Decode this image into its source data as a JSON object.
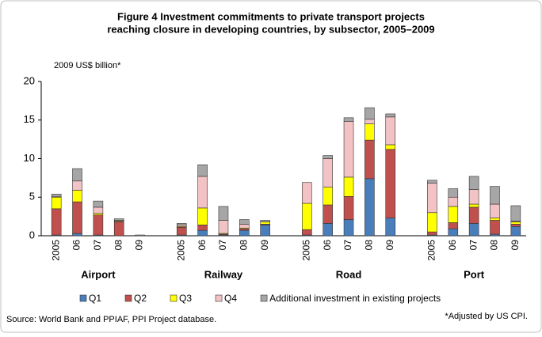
{
  "chart_data": {
    "type": "stacked_bar",
    "title": [
      "Figure 4 Investment commitments to private transport projects",
      "reaching closure in developing countries, by subsector, 2005–2009"
    ],
    "y_label": "2009 US$ billion*",
    "groups": [
      {
        "name": "Airport",
        "categories": [
          "2005",
          "06",
          "07",
          "08",
          "09"
        ]
      },
      {
        "name": "Railway",
        "categories": [
          "2005",
          "06",
          "07",
          "08",
          "09"
        ]
      },
      {
        "name": "Road",
        "categories": [
          "2005",
          "06",
          "07",
          "08",
          "09"
        ]
      },
      {
        "name": "Port",
        "categories": [
          "2005",
          "06",
          "07",
          "08",
          "09"
        ]
      }
    ],
    "series": [
      {
        "name": "Q1",
        "color": "#4a7ebb",
        "values": [
          0.1,
          0.3,
          0.1,
          0,
          0,
          0.1,
          0.7,
          0.1,
          0.7,
          1.4,
          0.1,
          1.6,
          2.1,
          7.4,
          2.3,
          0.1,
          0.9,
          1.6,
          0.2,
          1.2
        ]
      },
      {
        "name": "Q2",
        "color": "#c0504d",
        "values": [
          3.4,
          4.1,
          2.6,
          1.8,
          0,
          1.0,
          0.7,
          0.1,
          0.2,
          0.1,
          0.7,
          2.4,
          3.0,
          5.0,
          8.9,
          0.4,
          0.8,
          2.1,
          1.8,
          0.3
        ]
      },
      {
        "name": "Q3",
        "color": "#ffff00",
        "values": [
          1.5,
          1.5,
          0.2,
          0.1,
          0,
          0.1,
          2.2,
          0.1,
          0.1,
          0.3,
          3.4,
          2.3,
          2.5,
          2.1,
          0.6,
          2.5,
          2.1,
          0.4,
          0.3,
          0.3
        ]
      },
      {
        "name": "Q4",
        "color": "#f2c2c4",
        "values": [
          0.1,
          1.2,
          0.8,
          0.1,
          0,
          0.2,
          4.1,
          1.7,
          0.5,
          0,
          2.7,
          3.7,
          7.2,
          0.6,
          3.6,
          3.8,
          1.2,
          1.9,
          1.8,
          0.1
        ]
      },
      {
        "name": "Additional investment in existing projects",
        "color": "#a6a6a6",
        "values": [
          0.3,
          1.6,
          0.8,
          0.2,
          0.1,
          0.2,
          1.5,
          1.8,
          0.6,
          0.2,
          0,
          0.4,
          0.5,
          1.5,
          0.4,
          0.4,
          1.1,
          1.7,
          2.3,
          2.0
        ]
      }
    ],
    "ylim": [
      0,
      20
    ],
    "yticks": [
      0,
      5,
      10,
      15,
      20
    ],
    "source": "Source:  World Bank and PPIAF, PPI Project database.",
    "note": "*Adjusted by US CPI."
  }
}
